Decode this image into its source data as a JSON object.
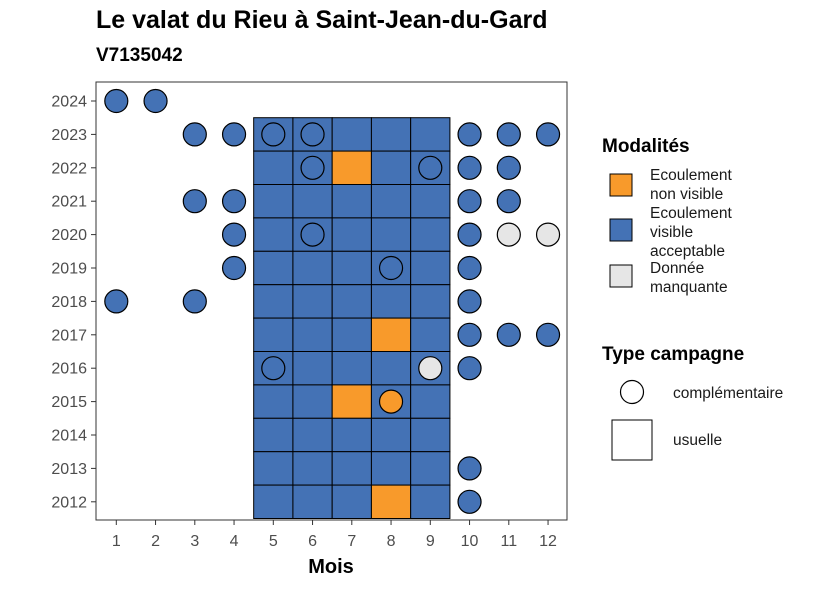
{
  "chart_data": {
    "type": "heatmap",
    "title": "Le valat du Rieu à Saint-Jean-du-Gard",
    "subtitle": "V7135042",
    "xlabel": "Mois",
    "ylabel": "",
    "x_categories": [
      1,
      2,
      3,
      4,
      5,
      6,
      7,
      8,
      9,
      10,
      11,
      12
    ],
    "y_categories": [
      2012,
      2013,
      2014,
      2015,
      2016,
      2017,
      2018,
      2019,
      2020,
      2021,
      2022,
      2023,
      2024
    ],
    "colors": {
      "non_visible": "#F89A2B",
      "visible": "#4472B5",
      "manquante": "#E6E6E6"
    },
    "legend_modalites": {
      "title": "Modalités",
      "items": [
        {
          "key": "non_visible",
          "lines": [
            "Ecoulement",
            "non visible"
          ]
        },
        {
          "key": "visible",
          "lines": [
            "Ecoulement",
            "visible",
            "acceptable"
          ]
        },
        {
          "key": "manquante",
          "lines": [
            "Donnée",
            "manquante"
          ]
        }
      ]
    },
    "legend_campagne": {
      "title": "Type campagne",
      "items": [
        {
          "shape": "circle",
          "label": "complémentaire"
        },
        {
          "shape": "square",
          "label": "usuelle"
        }
      ]
    },
    "usuelle": [
      {
        "year": 2023,
        "month": 5,
        "v": "visible"
      },
      {
        "year": 2023,
        "month": 6,
        "v": "visible"
      },
      {
        "year": 2023,
        "month": 7,
        "v": "visible"
      },
      {
        "year": 2023,
        "month": 8,
        "v": "visible"
      },
      {
        "year": 2023,
        "month": 9,
        "v": "visible"
      },
      {
        "year": 2022,
        "month": 5,
        "v": "visible"
      },
      {
        "year": 2022,
        "month": 6,
        "v": "visible"
      },
      {
        "year": 2022,
        "month": 7,
        "v": "non_visible"
      },
      {
        "year": 2022,
        "month": 8,
        "v": "visible"
      },
      {
        "year": 2022,
        "month": 9,
        "v": "visible"
      },
      {
        "year": 2021,
        "month": 5,
        "v": "visible"
      },
      {
        "year": 2021,
        "month": 6,
        "v": "visible"
      },
      {
        "year": 2021,
        "month": 7,
        "v": "visible"
      },
      {
        "year": 2021,
        "month": 8,
        "v": "visible"
      },
      {
        "year": 2021,
        "month": 9,
        "v": "visible"
      },
      {
        "year": 2020,
        "month": 5,
        "v": "visible"
      },
      {
        "year": 2020,
        "month": 6,
        "v": "visible"
      },
      {
        "year": 2020,
        "month": 7,
        "v": "visible"
      },
      {
        "year": 2020,
        "month": 8,
        "v": "visible"
      },
      {
        "year": 2020,
        "month": 9,
        "v": "visible"
      },
      {
        "year": 2019,
        "month": 5,
        "v": "visible"
      },
      {
        "year": 2019,
        "month": 6,
        "v": "visible"
      },
      {
        "year": 2019,
        "month": 7,
        "v": "visible"
      },
      {
        "year": 2019,
        "month": 8,
        "v": "visible"
      },
      {
        "year": 2019,
        "month": 9,
        "v": "visible"
      },
      {
        "year": 2018,
        "month": 5,
        "v": "visible"
      },
      {
        "year": 2018,
        "month": 6,
        "v": "visible"
      },
      {
        "year": 2018,
        "month": 7,
        "v": "visible"
      },
      {
        "year": 2018,
        "month": 8,
        "v": "visible"
      },
      {
        "year": 2018,
        "month": 9,
        "v": "visible"
      },
      {
        "year": 2017,
        "month": 5,
        "v": "visible"
      },
      {
        "year": 2017,
        "month": 6,
        "v": "visible"
      },
      {
        "year": 2017,
        "month": 7,
        "v": "visible"
      },
      {
        "year": 2017,
        "month": 8,
        "v": "non_visible"
      },
      {
        "year": 2017,
        "month": 9,
        "v": "visible"
      },
      {
        "year": 2016,
        "month": 5,
        "v": "visible"
      },
      {
        "year": 2016,
        "month": 6,
        "v": "visible"
      },
      {
        "year": 2016,
        "month": 7,
        "v": "visible"
      },
      {
        "year": 2016,
        "month": 8,
        "v": "visible"
      },
      {
        "year": 2016,
        "month": 9,
        "v": "visible"
      },
      {
        "year": 2015,
        "month": 5,
        "v": "visible"
      },
      {
        "year": 2015,
        "month": 6,
        "v": "visible"
      },
      {
        "year": 2015,
        "month": 7,
        "v": "non_visible"
      },
      {
        "year": 2015,
        "month": 8,
        "v": "visible"
      },
      {
        "year": 2015,
        "month": 9,
        "v": "visible"
      },
      {
        "year": 2014,
        "month": 5,
        "v": "visible"
      },
      {
        "year": 2014,
        "month": 6,
        "v": "visible"
      },
      {
        "year": 2014,
        "month": 7,
        "v": "visible"
      },
      {
        "year": 2014,
        "month": 8,
        "v": "visible"
      },
      {
        "year": 2014,
        "month": 9,
        "v": "visible"
      },
      {
        "year": 2013,
        "month": 5,
        "v": "visible"
      },
      {
        "year": 2013,
        "month": 6,
        "v": "visible"
      },
      {
        "year": 2013,
        "month": 7,
        "v": "visible"
      },
      {
        "year": 2013,
        "month": 8,
        "v": "visible"
      },
      {
        "year": 2013,
        "month": 9,
        "v": "visible"
      },
      {
        "year": 2012,
        "month": 5,
        "v": "visible"
      },
      {
        "year": 2012,
        "month": 6,
        "v": "visible"
      },
      {
        "year": 2012,
        "month": 7,
        "v": "visible"
      },
      {
        "year": 2012,
        "month": 8,
        "v": "non_visible"
      },
      {
        "year": 2012,
        "month": 9,
        "v": "visible"
      }
    ],
    "complementaire": [
      {
        "year": 2024,
        "month": 1,
        "v": "visible"
      },
      {
        "year": 2024,
        "month": 2,
        "v": "visible"
      },
      {
        "year": 2023,
        "month": 3,
        "v": "visible"
      },
      {
        "year": 2023,
        "month": 4,
        "v": "visible"
      },
      {
        "year": 2023,
        "month": 5,
        "v": "visible"
      },
      {
        "year": 2023,
        "month": 6,
        "v": "visible"
      },
      {
        "year": 2023,
        "month": 10,
        "v": "visible"
      },
      {
        "year": 2023,
        "month": 11,
        "v": "visible"
      },
      {
        "year": 2023,
        "month": 12,
        "v": "visible"
      },
      {
        "year": 2022,
        "month": 6,
        "v": "visible"
      },
      {
        "year": 2022,
        "month": 9,
        "v": "visible"
      },
      {
        "year": 2022,
        "month": 10,
        "v": "visible"
      },
      {
        "year": 2022,
        "month": 11,
        "v": "visible"
      },
      {
        "year": 2021,
        "month": 3,
        "v": "visible"
      },
      {
        "year": 2021,
        "month": 4,
        "v": "visible"
      },
      {
        "year": 2021,
        "month": 10,
        "v": "visible"
      },
      {
        "year": 2021,
        "month": 11,
        "v": "visible"
      },
      {
        "year": 2020,
        "month": 4,
        "v": "visible"
      },
      {
        "year": 2020,
        "month": 6,
        "v": "visible"
      },
      {
        "year": 2020,
        "month": 10,
        "v": "visible"
      },
      {
        "year": 2020,
        "month": 11,
        "v": "manquante"
      },
      {
        "year": 2020,
        "month": 12,
        "v": "manquante"
      },
      {
        "year": 2019,
        "month": 4,
        "v": "visible"
      },
      {
        "year": 2019,
        "month": 8,
        "v": "visible"
      },
      {
        "year": 2019,
        "month": 10,
        "v": "visible"
      },
      {
        "year": 2018,
        "month": 1,
        "v": "visible"
      },
      {
        "year": 2018,
        "month": 3,
        "v": "visible"
      },
      {
        "year": 2018,
        "month": 10,
        "v": "visible"
      },
      {
        "year": 2017,
        "month": 10,
        "v": "visible"
      },
      {
        "year": 2017,
        "month": 11,
        "v": "visible"
      },
      {
        "year": 2017,
        "month": 12,
        "v": "visible"
      },
      {
        "year": 2016,
        "month": 5,
        "v": "visible"
      },
      {
        "year": 2016,
        "month": 9,
        "v": "manquante"
      },
      {
        "year": 2016,
        "month": 10,
        "v": "visible"
      },
      {
        "year": 2015,
        "month": 8,
        "v": "non_visible"
      },
      {
        "year": 2013,
        "month": 10,
        "v": "visible"
      },
      {
        "year": 2012,
        "month": 10,
        "v": "visible"
      }
    ]
  }
}
